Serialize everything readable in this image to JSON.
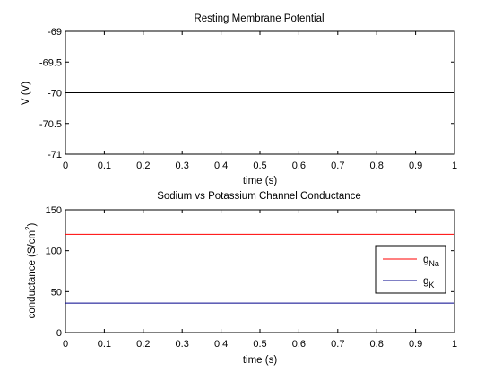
{
  "chart_data": [
    {
      "type": "line",
      "title": "Resting Membrane Potential",
      "xlabel": "time (s)",
      "ylabel": "V (V)",
      "xlim": [
        0,
        1
      ],
      "ylim": [
        -71,
        -69
      ],
      "xticks": [
        "0",
        "0.1",
        "0.2",
        "0.3",
        "0.4",
        "0.5",
        "0.6",
        "0.7",
        "0.8",
        "0.9",
        "1"
      ],
      "yticks": [
        "-69",
        "-69.5",
        "-70",
        "-70.5",
        "-71"
      ],
      "grid": false,
      "series": [
        {
          "color": "#000000",
          "x": [
            0,
            1
          ],
          "y": [
            -70,
            -70
          ]
        }
      ]
    },
    {
      "type": "line",
      "title": "Sodium vs Potassium Channel Conductance",
      "xlabel": "time (s)",
      "ylabel": "conductance (S/cm",
      "ylabel_sup": "2",
      "ylabel_end": ")",
      "xlim": [
        0,
        1
      ],
      "ylim": [
        0,
        150
      ],
      "xticks": [
        "0",
        "0.1",
        "0.2",
        "0.3",
        "0.4",
        "0.5",
        "0.6",
        "0.7",
        "0.8",
        "0.9",
        "1"
      ],
      "yticks": [
        "150",
        "100",
        "50",
        "0"
      ],
      "grid": false,
      "legend_position": "right",
      "series": [
        {
          "name": "g",
          "sub": "Na",
          "color": "#ff0000",
          "x": [
            0,
            1
          ],
          "y": [
            120,
            120
          ]
        },
        {
          "name": "g",
          "sub": "K",
          "color": "#00008b",
          "x": [
            0,
            1
          ],
          "y": [
            36,
            36
          ]
        }
      ]
    }
  ]
}
